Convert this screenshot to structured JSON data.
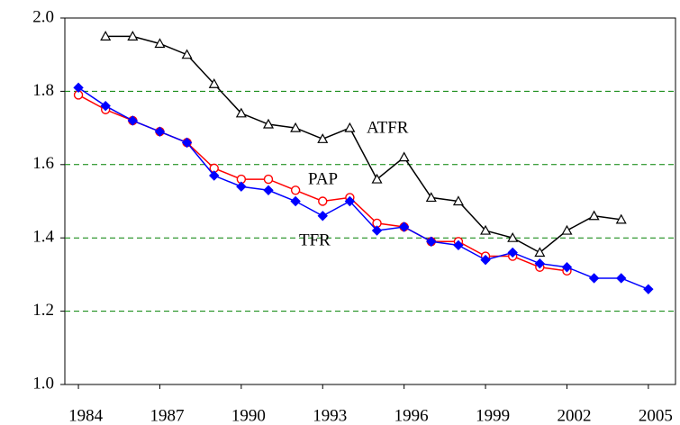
{
  "chart_data": {
    "type": "line",
    "x": [
      1984,
      1985,
      1986,
      1987,
      1988,
      1989,
      1990,
      1991,
      1992,
      1993,
      1994,
      1995,
      1996,
      1997,
      1998,
      1999,
      2000,
      2001,
      2002,
      2003,
      2004,
      2005
    ],
    "series": [
      {
        "name": "ATFR",
        "color": "#000000",
        "marker": "triangle",
        "values": [
          null,
          1.95,
          1.95,
          1.93,
          1.9,
          1.82,
          1.74,
          1.71,
          1.7,
          1.67,
          1.7,
          1.56,
          1.62,
          1.51,
          1.5,
          1.42,
          1.4,
          1.36,
          1.42,
          1.46,
          1.45,
          null
        ]
      },
      {
        "name": "PAP",
        "color": "#ff0000",
        "marker": "circle",
        "values": [
          1.79,
          1.75,
          1.72,
          1.69,
          1.66,
          1.59,
          1.56,
          1.56,
          1.53,
          1.5,
          1.51,
          1.44,
          1.43,
          1.39,
          1.39,
          1.35,
          1.35,
          1.32,
          1.31,
          null,
          null,
          null
        ]
      },
      {
        "name": "TFR",
        "color": "#0000ff",
        "marker": "diamond",
        "values": [
          1.81,
          1.76,
          1.72,
          1.69,
          1.66,
          1.57,
          1.54,
          1.53,
          1.5,
          1.46,
          1.5,
          1.42,
          1.43,
          1.39,
          1.38,
          1.34,
          1.36,
          1.33,
          1.32,
          1.29,
          1.29,
          1.26
        ]
      }
    ],
    "xlim": [
      1983.5,
      2006
    ],
    "xticks": [
      1984,
      1987,
      1990,
      1993,
      1996,
      1999,
      2002,
      2005
    ],
    "ylim": [
      1,
      2
    ],
    "yticks": [
      {
        "value": 1,
        "label": "1.0"
      },
      1.2,
      1.4,
      1.6,
      1.8,
      {
        "value": 2,
        "label": "2.0"
      }
    ],
    "grid": true,
    "grid_color": "#008000"
  }
}
